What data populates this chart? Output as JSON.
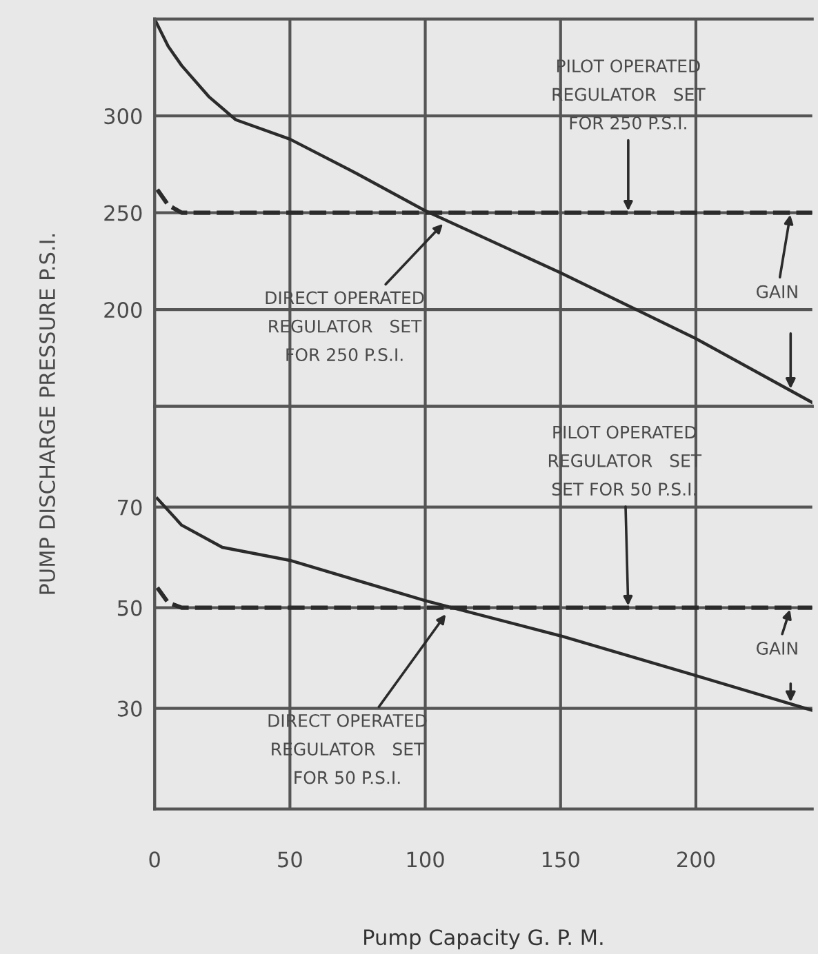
{
  "chart_data": [
    {
      "type": "line",
      "ylabel": "PUMP DISCHARGE PRESSURE P.S.I.",
      "xlim": [
        0,
        243
      ],
      "xticks": [
        0,
        50,
        100,
        150,
        200
      ],
      "ylim": [
        150,
        350
      ],
      "yticks": [
        {
          "value": 150,
          "label": null
        },
        200,
        250,
        300
      ],
      "grid": true,
      "tick_labels": "y",
      "series": [
        {
          "color": "#2b2b2b",
          "line_style": "solid",
          "x": [
            0,
            5,
            10,
            20,
            30,
            50,
            75,
            100,
            150,
            200,
            243
          ],
          "values": [
            350,
            336,
            326,
            310,
            298,
            288,
            270,
            251,
            219,
            185,
            152
          ]
        },
        {
          "color": "#2b2b2b",
          "line_style": "dashed",
          "x": [
            1,
            5,
            10,
            50,
            100,
            150,
            200,
            243
          ],
          "values": [
            262,
            254,
            250,
            250,
            250,
            250,
            250,
            250
          ]
        }
      ],
      "annotations": [
        {
          "text": "PILOT OPERATED\nREGULATOR   SET\nFOR 250 P.S.I.",
          "x": 175,
          "y": 250
        },
        {
          "text": "DIRECT OPERATED\nREGULATOR   SET\nFOR 250 P.S.I.",
          "x": 107,
          "y": 245
        },
        {
          "text": "GAIN",
          "x": 235,
          "y": 250
        }
      ]
    },
    {
      "type": "line",
      "xlabel": "Pump Capacity G. P. M.",
      "xlim": [
        0,
        243
      ],
      "xticks": [
        0,
        50,
        100,
        150,
        200
      ],
      "ylim": [
        10,
        90
      ],
      "yticks": [
        30,
        50,
        70
      ],
      "grid": true,
      "series": [
        {
          "color": "#2b2b2b",
          "line_style": "solid",
          "x": [
            1,
            10,
            25,
            50,
            100,
            110,
            150,
            200,
            243
          ],
          "values": [
            71.7,
            66.4,
            62,
            59.4,
            51.4,
            50,
            44.4,
            36.5,
            29.6
          ]
        },
        {
          "color": "#2b2b2b",
          "line_style": "dashed",
          "x": [
            1,
            5,
            10,
            50,
            100,
            150,
            200,
            243
          ],
          "values": [
            54,
            51,
            50,
            50,
            50,
            50,
            50,
            50
          ]
        }
      ],
      "annotations": [
        {
          "text": "PILOT OPERATED\nREGULATOR   SET\nSET FOR 50 P.S.I.",
          "x": 175,
          "y": 50
        },
        {
          "text": "DIRECT OPERATED\nREGULATOR   SET\nFOR 50 P.S.I.",
          "x": 108,
          "y": 49
        },
        {
          "text": "GAIN",
          "x": 235,
          "y": 50
        }
      ]
    }
  ]
}
